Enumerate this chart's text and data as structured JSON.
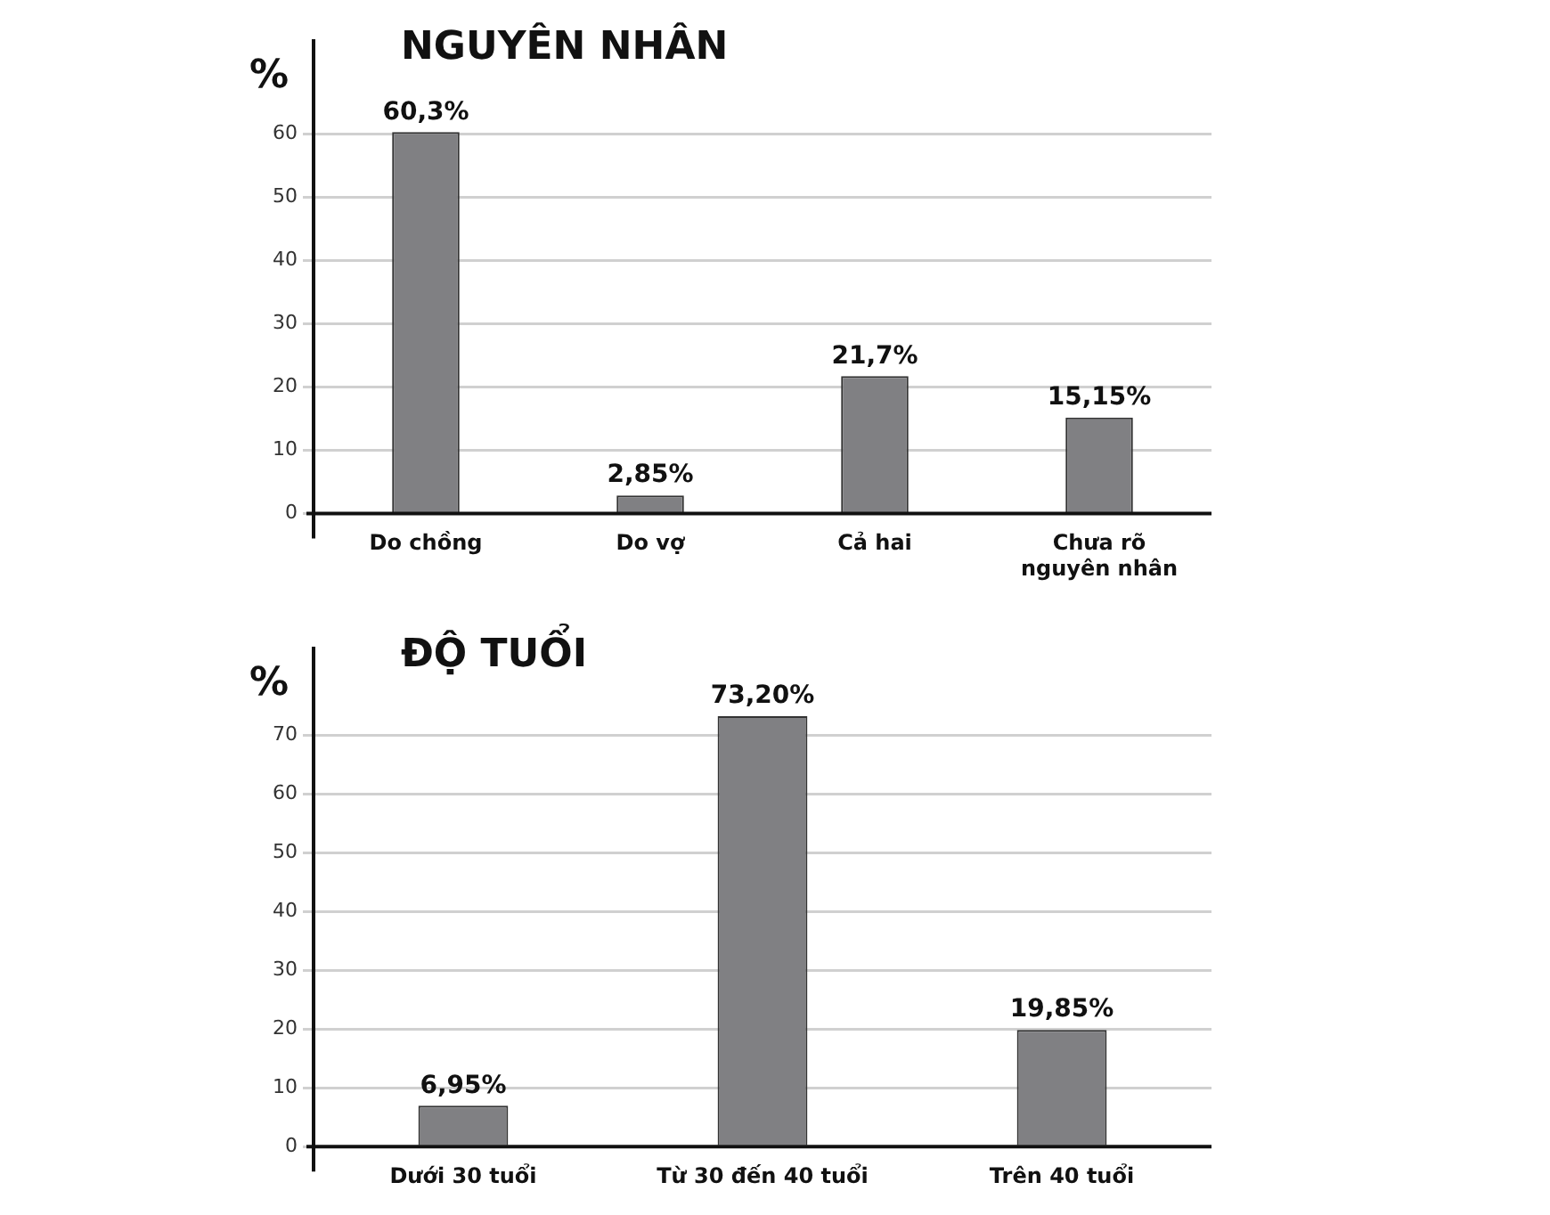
{
  "chart_data": [
    {
      "type": "bar",
      "title": "NGUYÊN NHÂN",
      "ylabel": "%",
      "categories": [
        "Do chồng",
        "Do vợ",
        "Cả hai",
        "Chưa rõ nguyên nhân"
      ],
      "values": [
        60.3,
        2.85,
        21.7,
        15.15
      ],
      "value_labels": [
        "60,3%",
        "2,85%",
        "21,7%",
        "15,15%"
      ],
      "color": "#808083",
      "ylim": [
        0,
        75
      ],
      "yticks": [
        0,
        10,
        20,
        30,
        40,
        50,
        60
      ],
      "grid": "y",
      "legend": false
    },
    {
      "type": "bar",
      "title": "ĐỘ TUỔI",
      "ylabel": "%",
      "categories": [
        "Dưới 30 tuổi",
        "Từ 30 đến 40 tuổi",
        "Trên 40 tuổi"
      ],
      "values": [
        6.95,
        73.2,
        19.85
      ],
      "value_labels": [
        "6,95%",
        "73,20%",
        "19,85%"
      ],
      "color": "#808083",
      "ylim": [
        0,
        85
      ],
      "yticks": [
        0,
        10,
        20,
        30,
        40,
        50,
        60,
        70
      ],
      "grid": "y",
      "legend": false
    }
  ]
}
